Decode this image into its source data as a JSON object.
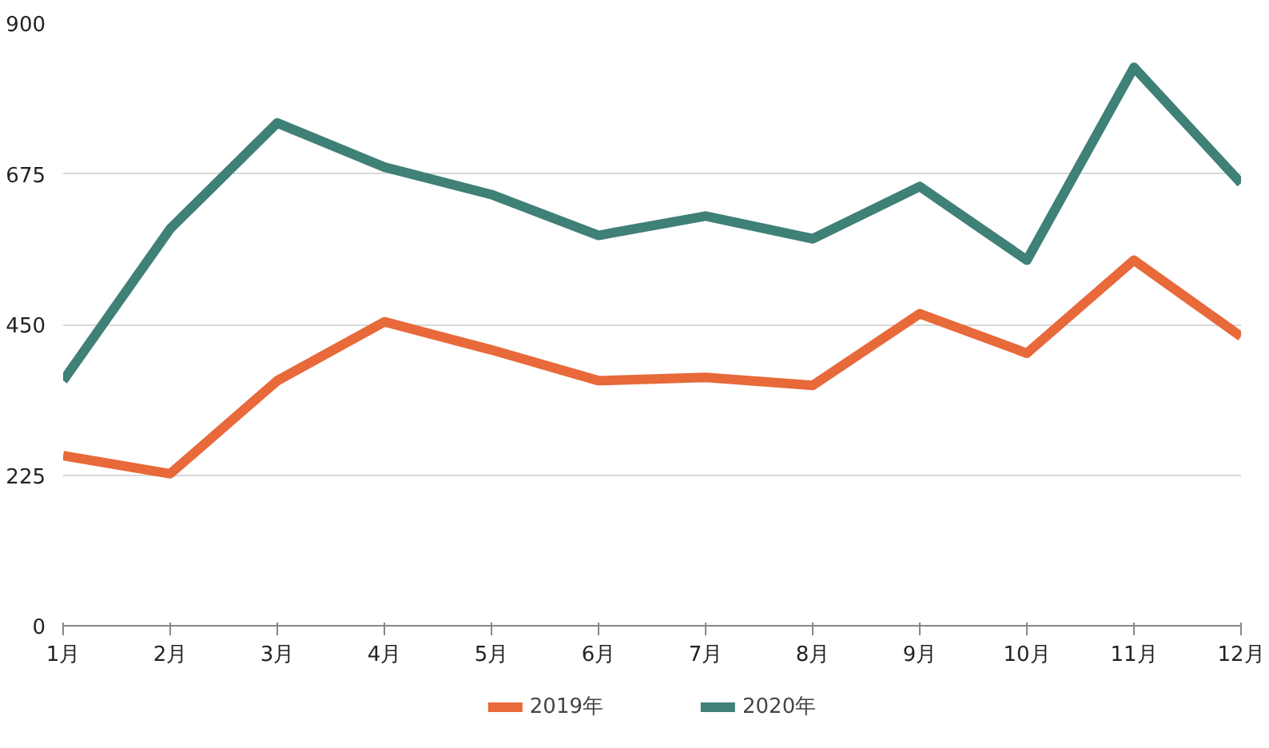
{
  "chart_data": {
    "type": "line",
    "categories": [
      "1月",
      "2月",
      "3月",
      "4月",
      "5月",
      "6月",
      "7月",
      "8月",
      "9月",
      "10月",
      "11月",
      "12月"
    ],
    "series": [
      {
        "name": "2019年",
        "color": "#e8693a",
        "values": [
          254,
          227,
          366,
          454,
          412,
          366,
          371,
          359,
          466,
          407,
          546,
          432
        ]
      },
      {
        "name": "2020年",
        "color": "#3f8077",
        "values": [
          366,
          593,
          751,
          685,
          644,
          583,
          612,
          578,
          656,
          546,
          834,
          661
        ]
      }
    ],
    "ylim": [
      0,
      900
    ],
    "yticks": [
      0,
      225,
      450,
      675,
      900
    ],
    "grid": "y",
    "legend": "bottom",
    "marker": "none",
    "line_style": "solid"
  }
}
